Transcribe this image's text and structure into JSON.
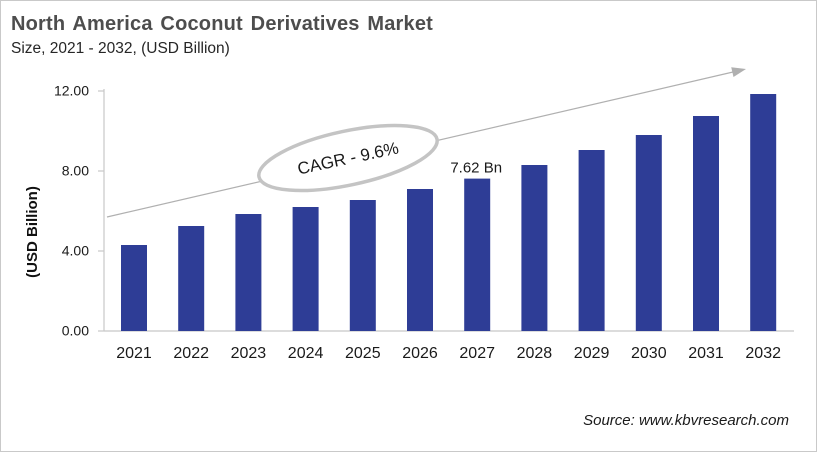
{
  "header": {
    "title": "North America Coconut Derivatives Market",
    "subtitle": "Size, 2021 - 2032, (USD Billion)"
  },
  "chart_data": {
    "type": "bar",
    "title": "North America Coconut Derivatives Market Size, 2021 - 2032, (USD Billion)",
    "categories": [
      "2021",
      "2022",
      "2023",
      "2024",
      "2025",
      "2026",
      "2027",
      "2028",
      "2029",
      "2030",
      "2031",
      "2032"
    ],
    "values": [
      4.3,
      5.25,
      5.85,
      6.2,
      6.55,
      7.1,
      7.62,
      8.3,
      9.05,
      9.8,
      10.75,
      11.85
    ],
    "xlabel": "",
    "ylabel": "(USD Billion)",
    "ylim": [
      0,
      12
    ],
    "yticks": [
      {
        "value": 0,
        "label": "0.00"
      },
      {
        "value": 4,
        "label": "4.00"
      },
      {
        "value": 8,
        "label": "8.00"
      },
      {
        "value": 12,
        "label": "12.00"
      }
    ],
    "grid": false,
    "legend": false,
    "bar_color": "#2e3d96",
    "annotations": {
      "cagr_label": "CAGR - 9.6%",
      "data_label": {
        "category": "2027",
        "text": "7.62 Bn"
      },
      "trend_arrow": true
    }
  },
  "footer": {
    "source": "Source: www.kbvresearch.com"
  },
  "colors": {
    "bar": "#2e3d96",
    "axis": "#c8c8c8",
    "arrow": "#b0b0b0",
    "ellipse": "#c4c4c4",
    "title": "#4d4d4d",
    "text": "#1a1a1a"
  }
}
